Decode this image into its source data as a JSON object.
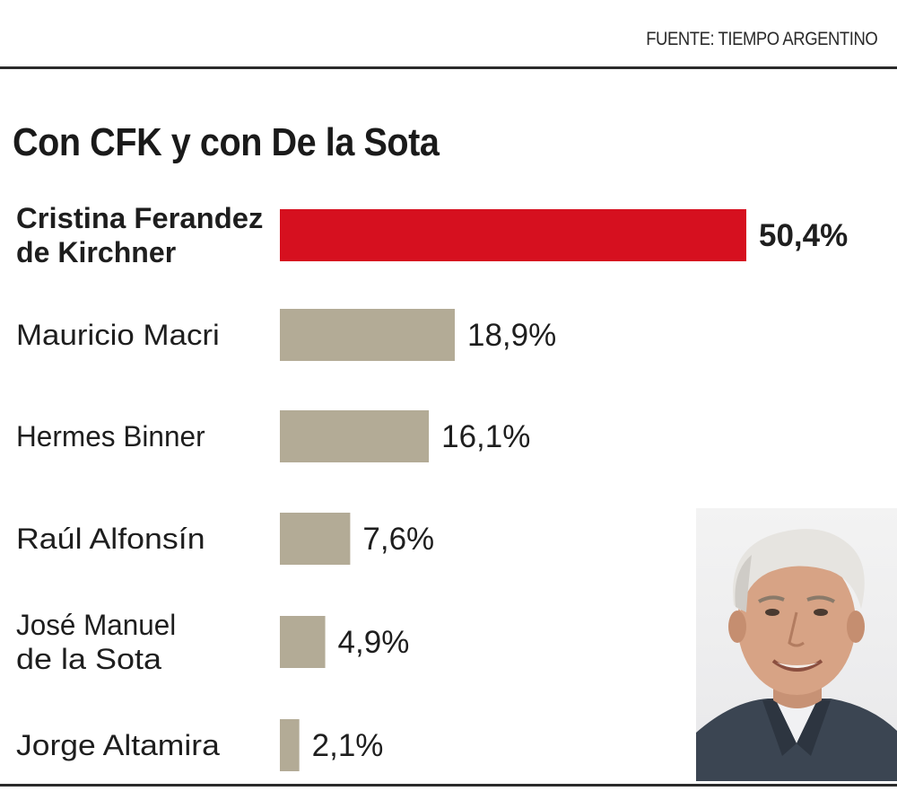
{
  "source": "FUENTE: TIEMPO ARGENTINO",
  "chart_data": {
    "type": "bar",
    "orientation": "horizontal",
    "title": "Con CFK y con De la Sota",
    "categories": [
      [
        "Cristina Ferandez",
        "de Kirchner"
      ],
      [
        "Mauricio Macri"
      ],
      [
        "Hermes Binner"
      ],
      [
        "Raúl Alfonsín"
      ],
      [
        "José Manuel",
        "de la Sota"
      ],
      [
        "Jorge Altamira"
      ]
    ],
    "values": [
      50.4,
      18.9,
      16.1,
      7.6,
      4.9,
      2.1
    ],
    "value_labels": [
      "50,4%",
      "18,9%",
      "16,1%",
      "7,6%",
      "4,9%",
      "2,1%"
    ],
    "highlight_index": 0,
    "colors": {
      "highlight": "#d6101f",
      "default": "#b3ab96"
    },
    "grid": false,
    "legend": "none"
  },
  "photo": {
    "icon": "portrait-photo"
  }
}
